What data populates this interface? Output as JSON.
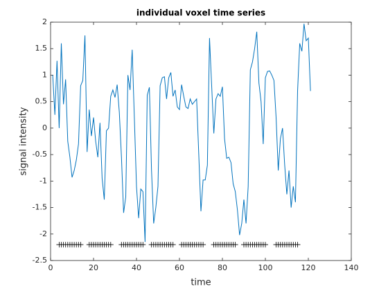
{
  "chart_data": {
    "type": "line",
    "title": "individual voxel time series",
    "x_label": "time",
    "y_label": "signal intensity",
    "xlim": [
      0,
      140
    ],
    "xticks": [
      0,
      20,
      40,
      60,
      80,
      100,
      120,
      140
    ],
    "ylim": [
      -2.5,
      2
    ],
    "yticks": [
      -2.5,
      -2,
      -1.5,
      -1,
      -0.5,
      0,
      0.5,
      1,
      1.5,
      2
    ],
    "grid": false,
    "series": [
      {
        "color": "#0072bd",
        "marker": "none",
        "x": [
          1,
          2,
          3,
          4,
          5,
          6,
          7,
          8,
          9,
          10,
          11,
          12,
          13,
          14,
          15,
          16,
          17,
          18,
          19,
          20,
          21,
          22,
          23,
          24,
          25,
          26,
          27,
          28,
          29,
          30,
          31,
          32,
          33,
          34,
          35,
          36,
          37,
          38,
          39,
          40,
          41,
          42,
          43,
          44,
          45,
          46,
          47,
          48,
          49,
          50,
          51,
          52,
          53,
          54,
          55,
          56,
          57,
          58,
          59,
          60,
          61,
          62,
          63,
          64,
          65,
          66,
          67,
          68,
          69,
          70,
          71,
          72,
          73,
          74,
          75,
          76,
          77,
          78,
          79,
          80,
          81,
          82,
          83,
          84,
          85,
          86,
          87,
          88,
          89,
          90,
          91,
          92,
          93,
          94,
          95,
          96,
          97,
          98,
          99,
          100,
          101,
          102,
          103,
          104,
          105,
          106,
          107,
          108,
          109,
          110,
          111,
          112,
          113,
          114,
          115,
          116,
          117,
          118,
          119,
          120,
          121
        ],
        "values": [
          1.0,
          0.25,
          1.27,
          0.0,
          1.6,
          0.45,
          0.92,
          -0.25,
          -0.55,
          -0.93,
          -0.8,
          -0.6,
          -0.3,
          0.8,
          0.9,
          1.75,
          -0.45,
          0.35,
          -0.15,
          0.2,
          -0.25,
          -0.55,
          0.1,
          -0.95,
          -1.35,
          -0.05,
          0.0,
          0.6,
          0.72,
          0.58,
          0.82,
          0.3,
          -0.55,
          -1.6,
          -1.3,
          1.0,
          0.72,
          1.48,
          0.2,
          -1.1,
          -1.7,
          -1.15,
          -1.2,
          -2.15,
          0.62,
          0.77,
          -0.8,
          -1.8,
          -1.5,
          -1.1,
          0.8,
          0.95,
          0.97,
          0.55,
          0.95,
          1.05,
          0.6,
          0.72,
          0.4,
          0.35,
          0.82,
          0.6,
          0.4,
          0.37,
          0.55,
          0.45,
          0.5,
          0.55,
          -0.5,
          -1.57,
          -0.98,
          -0.98,
          -0.7,
          1.7,
          0.8,
          -0.1,
          0.55,
          0.65,
          0.6,
          0.78,
          -0.2,
          -0.57,
          -0.55,
          -0.65,
          -1.05,
          -1.2,
          -1.55,
          -2.02,
          -1.8,
          -1.35,
          -1.8,
          -1.1,
          1.1,
          1.25,
          1.5,
          1.82,
          0.85,
          0.5,
          -0.3,
          0.95,
          1.07,
          1.08,
          1.0,
          0.9,
          0.2,
          -0.8,
          -0.2,
          0.0,
          -0.7,
          -1.25,
          -0.8,
          -1.5,
          -1.1,
          -1.4,
          0.7,
          1.6,
          1.45,
          1.97,
          1.65,
          1.7,
          0.7
        ]
      },
      {
        "color": "#000000",
        "marker": "+",
        "x": [
          4,
          5,
          6,
          7,
          8,
          9,
          10,
          11,
          12,
          13,
          14,
          18,
          19,
          20,
          21,
          22,
          23,
          24,
          25,
          26,
          27,
          28,
          33,
          34,
          35,
          36,
          37,
          38,
          39,
          40,
          41,
          42,
          43,
          47,
          48,
          49,
          50,
          51,
          52,
          53,
          54,
          55,
          56,
          57,
          61,
          62,
          63,
          64,
          65,
          66,
          67,
          68,
          69,
          70,
          71,
          76,
          77,
          78,
          79,
          80,
          81,
          82,
          83,
          84,
          85,
          86,
          90,
          91,
          92,
          93,
          94,
          95,
          96,
          97,
          98,
          99,
          100,
          105,
          106,
          107,
          108,
          109,
          110,
          111,
          112,
          113,
          114,
          115
        ],
        "values": [
          -2.2,
          -2.2,
          -2.2,
          -2.2,
          -2.2,
          -2.2,
          -2.2,
          -2.2,
          -2.2,
          -2.2,
          -2.2,
          -2.2,
          -2.2,
          -2.2,
          -2.2,
          -2.2,
          -2.2,
          -2.2,
          -2.2,
          -2.2,
          -2.2,
          -2.2,
          -2.2,
          -2.2,
          -2.2,
          -2.2,
          -2.2,
          -2.2,
          -2.2,
          -2.2,
          -2.2,
          -2.2,
          -2.2,
          -2.2,
          -2.2,
          -2.2,
          -2.2,
          -2.2,
          -2.2,
          -2.2,
          -2.2,
          -2.2,
          -2.2,
          -2.2,
          -2.2,
          -2.2,
          -2.2,
          -2.2,
          -2.2,
          -2.2,
          -2.2,
          -2.2,
          -2.2,
          -2.2,
          -2.2,
          -2.2,
          -2.2,
          -2.2,
          -2.2,
          -2.2,
          -2.2,
          -2.2,
          -2.2,
          -2.2,
          -2.2,
          -2.2,
          -2.2,
          -2.2,
          -2.2,
          -2.2,
          -2.2,
          -2.2,
          -2.2,
          -2.2,
          -2.2,
          -2.2,
          -2.2,
          -2.2,
          -2.2,
          -2.2,
          -2.2,
          -2.2,
          -2.2,
          -2.2,
          -2.2,
          -2.2,
          -2.2,
          -2.2
        ]
      }
    ]
  }
}
